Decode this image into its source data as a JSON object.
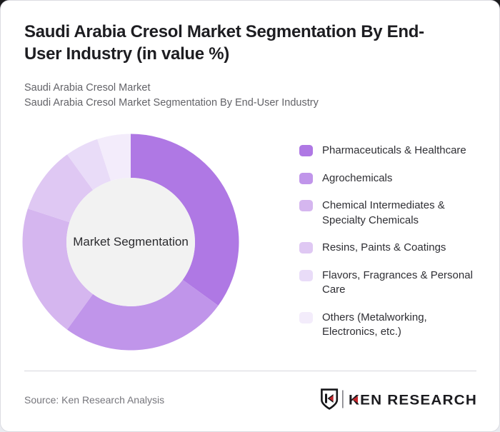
{
  "page": {
    "title": "Saudi Arabia Cresol Market Segmentation By End-\nUser Industry (in value %)",
    "subtitle_line1": "Saudi Arabia Cresol Market",
    "subtitle_line2": "Saudi Arabia Cresol Market Segmentation By End-User Industry"
  },
  "chart_data": {
    "type": "pie",
    "variant": "donut",
    "title": "Saudi Arabia Cresol Market Segmentation By End-User Industry (in value %)",
    "center_label": "Market Segmentation",
    "unit": "value %",
    "start_angle_deg": 0,
    "direction": "clockwise",
    "legend_position": "right",
    "categories": [
      "Pharmaceuticals & Healthcare",
      "Agrochemicals",
      "Chemical Intermediates &\nSpecialty Chemicals",
      "Resins, Paints & Coatings",
      "Flavors, Fragrances & Personal\nCare",
      "Others (Metalworking,\nElectronics, etc.)"
    ],
    "values": [
      35,
      25,
      20,
      10,
      5,
      5
    ],
    "colors": [
      "#af78e4",
      "#c095ea",
      "#d5b6ef",
      "#dfc8f3",
      "#e9dcf8",
      "#f3ecfb"
    ],
    "inner_hole_color": "#f2f2f2"
  },
  "footer": {
    "source": "Source: Ken Research Analysis",
    "logo_text": "KEN RESEARCH",
    "logo_black": "#17171a",
    "logo_red": "#c4262c"
  }
}
